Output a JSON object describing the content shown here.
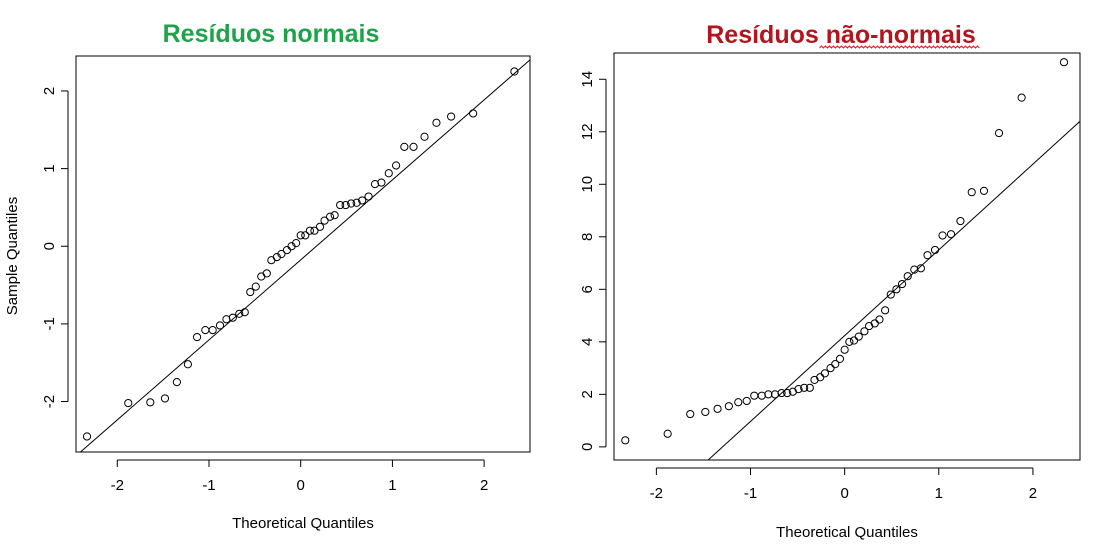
{
  "chart_data": [
    {
      "type": "scatter",
      "title": "Resíduos normais",
      "title_color": "#1ea34a",
      "xlabel": "Theoretical Quantiles",
      "ylabel": "Sample Quantiles",
      "xlim": [
        -2.45,
        2.5
      ],
      "ylim": [
        -2.65,
        2.45
      ],
      "xticks": [
        -2,
        -1,
        0,
        1,
        2
      ],
      "yticks": [
        -2,
        -1,
        0,
        1,
        2
      ],
      "reference_line": {
        "x": [
          -2.45,
          2.5
        ],
        "y": [
          -2.7,
          2.4
        ]
      },
      "marker": "open-circle",
      "points": [
        [
          -2.33,
          -2.45
        ],
        [
          -1.88,
          -2.02
        ],
        [
          -1.64,
          -2.01
        ],
        [
          -1.48,
          -1.96
        ],
        [
          -1.35,
          -1.75
        ],
        [
          -1.23,
          -1.52
        ],
        [
          -1.13,
          -1.17
        ],
        [
          -1.04,
          -1.08
        ],
        [
          -0.96,
          -1.08
        ],
        [
          -0.88,
          -1.02
        ],
        [
          -0.81,
          -0.94
        ],
        [
          -0.74,
          -0.92
        ],
        [
          -0.67,
          -0.87
        ],
        [
          -0.61,
          -0.85
        ],
        [
          -0.55,
          -0.59
        ],
        [
          -0.49,
          -0.52
        ],
        [
          -0.43,
          -0.39
        ],
        [
          -0.37,
          -0.35
        ],
        [
          -0.32,
          -0.18
        ],
        [
          -0.26,
          -0.14
        ],
        [
          -0.21,
          -0.1
        ],
        [
          -0.15,
          -0.05
        ],
        [
          -0.1,
          0.0
        ],
        [
          -0.05,
          0.04
        ],
        [
          0.0,
          0.14
        ],
        [
          0.05,
          0.14
        ],
        [
          0.1,
          0.2
        ],
        [
          0.15,
          0.2
        ],
        [
          0.21,
          0.25
        ],
        [
          0.26,
          0.33
        ],
        [
          0.32,
          0.38
        ],
        [
          0.37,
          0.4
        ],
        [
          0.43,
          0.53
        ],
        [
          0.49,
          0.53
        ],
        [
          0.55,
          0.55
        ],
        [
          0.61,
          0.56
        ],
        [
          0.67,
          0.59
        ],
        [
          0.74,
          0.64
        ],
        [
          0.81,
          0.8
        ],
        [
          0.88,
          0.82
        ],
        [
          0.96,
          0.94
        ],
        [
          1.04,
          1.04
        ],
        [
          1.13,
          1.28
        ],
        [
          1.23,
          1.28
        ],
        [
          1.35,
          1.41
        ],
        [
          1.48,
          1.59
        ],
        [
          1.64,
          1.67
        ],
        [
          1.88,
          1.71
        ],
        [
          2.33,
          2.25
        ]
      ]
    },
    {
      "type": "scatter",
      "title": "Resíduos não-normais",
      "title_color": "#b1161f",
      "xlabel": "Theoretical Quantiles",
      "ylabel": "",
      "xlim": [
        -2.45,
        2.5
      ],
      "ylim": [
        -0.5,
        15.0
      ],
      "xticks": [
        -2,
        -1,
        0,
        1,
        2
      ],
      "yticks": [
        0,
        2,
        4,
        6,
        8,
        10,
        12,
        14
      ],
      "reference_line": {
        "x": [
          -1.45,
          2.5
        ],
        "y": [
          -0.5,
          12.4
        ]
      },
      "marker": "open-circle",
      "points": [
        [
          -2.33,
          0.25
        ],
        [
          -1.88,
          0.5
        ],
        [
          -1.64,
          1.25
        ],
        [
          -1.48,
          1.33
        ],
        [
          -1.35,
          1.45
        ],
        [
          -1.23,
          1.55
        ],
        [
          -1.13,
          1.7
        ],
        [
          -1.04,
          1.75
        ],
        [
          -0.96,
          1.95
        ],
        [
          -0.88,
          1.95
        ],
        [
          -0.81,
          2.0
        ],
        [
          -0.74,
          2.0
        ],
        [
          -0.67,
          2.05
        ],
        [
          -0.61,
          2.05
        ],
        [
          -0.55,
          2.1
        ],
        [
          -0.49,
          2.2
        ],
        [
          -0.43,
          2.25
        ],
        [
          -0.37,
          2.25
        ],
        [
          -0.32,
          2.55
        ],
        [
          -0.26,
          2.65
        ],
        [
          -0.21,
          2.8
        ],
        [
          -0.15,
          3.0
        ],
        [
          -0.1,
          3.15
        ],
        [
          -0.05,
          3.35
        ],
        [
          0.0,
          3.7
        ],
        [
          0.05,
          4.0
        ],
        [
          0.1,
          4.05
        ],
        [
          0.15,
          4.2
        ],
        [
          0.21,
          4.4
        ],
        [
          0.26,
          4.6
        ],
        [
          0.32,
          4.7
        ],
        [
          0.37,
          4.85
        ],
        [
          0.43,
          5.2
        ],
        [
          0.49,
          5.8
        ],
        [
          0.55,
          6.0
        ],
        [
          0.61,
          6.2
        ],
        [
          0.67,
          6.5
        ],
        [
          0.74,
          6.75
        ],
        [
          0.81,
          6.8
        ],
        [
          0.88,
          7.3
        ],
        [
          0.96,
          7.5
        ],
        [
          1.04,
          8.05
        ],
        [
          1.13,
          8.1
        ],
        [
          1.23,
          8.6
        ],
        [
          1.35,
          9.7
        ],
        [
          1.48,
          9.75
        ],
        [
          1.64,
          11.95
        ],
        [
          1.88,
          13.3
        ],
        [
          2.33,
          14.65
        ]
      ]
    }
  ]
}
